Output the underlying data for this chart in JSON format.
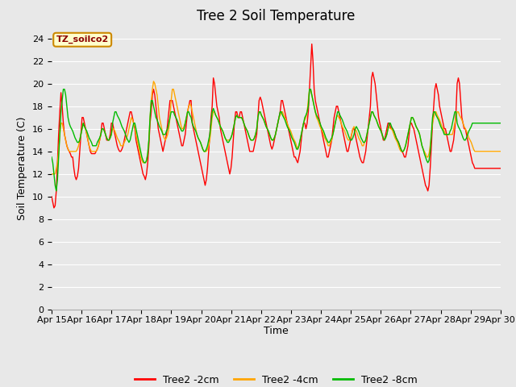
{
  "title": "Tree 2 Soil Temperature",
  "xlabel": "Time",
  "ylabel": "Soil Temperature (C)",
  "legend_label": "TZ_soilco2",
  "series_labels": [
    "Tree2 -2cm",
    "Tree2 -4cm",
    "Tree2 -8cm"
  ],
  "series_colors": [
    "#ff0000",
    "#ffa500",
    "#00bb00"
  ],
  "line_width": 1.0,
  "xlim": [
    0,
    15
  ],
  "ylim": [
    0,
    25
  ],
  "yticks": [
    0,
    2,
    4,
    6,
    8,
    10,
    12,
    14,
    16,
    18,
    20,
    22,
    24
  ],
  "xtick_labels": [
    "Apr 15",
    "Apr 16",
    "Apr 17",
    "Apr 18",
    "Apr 19",
    "Apr 20",
    "Apr 21",
    "Apr 22",
    "Apr 23",
    "Apr 24",
    "Apr 25",
    "Apr 26",
    "Apr 27",
    "Apr 28",
    "Apr 29",
    "Apr 30"
  ],
  "background_color": "#e8e8e8",
  "plot_bg_color": "#e8e8e8",
  "grid_color": "#ffffff",
  "title_fontsize": 12,
  "axis_label_fontsize": 9,
  "tick_fontsize": 8,
  "legend_box_color": "#ffffcc",
  "legend_box_edge_color": "#cc8800",
  "red_2cm": [
    10.0,
    9.5,
    9.0,
    9.2,
    10.5,
    13.0,
    15.5,
    17.5,
    19.2,
    18.0,
    16.5,
    15.5,
    15.0,
    14.5,
    14.2,
    14.0,
    13.8,
    13.5,
    13.5,
    12.5,
    11.8,
    11.5,
    11.8,
    12.5,
    14.0,
    15.5,
    17.0,
    17.0,
    16.5,
    16.0,
    15.5,
    15.0,
    14.5,
    14.0,
    13.8,
    13.8,
    13.8,
    13.8,
    14.0,
    14.2,
    14.5,
    15.0,
    15.5,
    16.5,
    16.5,
    16.0,
    15.5,
    15.0,
    15.0,
    15.0,
    15.5,
    16.5,
    16.5,
    16.0,
    15.5,
    15.0,
    14.5,
    14.2,
    14.0,
    14.0,
    14.2,
    14.5,
    15.0,
    15.5,
    16.0,
    16.5,
    17.0,
    17.5,
    17.5,
    17.0,
    16.5,
    16.0,
    15.0,
    14.5,
    14.0,
    13.5,
    13.0,
    12.5,
    12.0,
    11.8,
    11.5,
    12.0,
    13.0,
    14.5,
    16.5,
    17.5,
    19.0,
    19.5,
    19.0,
    18.0,
    17.0,
    16.0,
    15.5,
    15.0,
    14.5,
    14.0,
    14.5,
    15.0,
    15.5,
    16.5,
    17.5,
    18.5,
    18.5,
    18.5,
    18.0,
    17.5,
    17.0,
    16.5,
    16.0,
    15.5,
    15.0,
    14.5,
    14.5,
    15.0,
    15.5,
    16.5,
    17.5,
    18.0,
    18.5,
    18.5,
    16.5,
    16.0,
    15.5,
    15.0,
    14.5,
    14.0,
    13.5,
    13.0,
    12.5,
    12.0,
    11.5,
    11.0,
    11.5,
    12.5,
    14.0,
    15.5,
    17.0,
    18.0,
    20.5,
    20.0,
    19.0,
    18.0,
    17.5,
    17.0,
    16.0,
    15.5,
    15.0,
    14.5,
    14.0,
    13.5,
    13.0,
    12.5,
    12.0,
    12.5,
    13.5,
    15.0,
    16.5,
    17.5,
    17.5,
    17.0,
    17.0,
    17.5,
    17.5,
    17.0,
    16.5,
    16.0,
    15.5,
    15.0,
    14.5,
    14.0,
    14.0,
    14.0,
    14.0,
    14.5,
    15.0,
    15.5,
    17.0,
    18.5,
    18.8,
    18.5,
    18.0,
    17.5,
    17.0,
    16.5,
    16.0,
    15.5,
    15.0,
    14.5,
    14.2,
    14.5,
    15.0,
    15.5,
    16.0,
    16.5,
    17.0,
    17.5,
    18.5,
    18.5,
    18.0,
    17.5,
    17.0,
    16.5,
    16.0,
    15.5,
    15.0,
    14.5,
    14.0,
    13.5,
    13.5,
    13.2,
    13.0,
    13.5,
    14.0,
    15.0,
    16.0,
    16.5,
    16.5,
    16.0,
    16.5,
    17.5,
    19.5,
    21.5,
    23.5,
    22.0,
    19.5,
    18.5,
    18.0,
    17.5,
    17.0,
    16.5,
    16.0,
    15.5,
    15.0,
    14.5,
    14.0,
    13.5,
    13.5,
    14.0,
    14.5,
    15.0,
    16.0,
    17.0,
    17.5,
    18.0,
    18.0,
    17.5,
    17.0,
    16.5,
    16.0,
    15.5,
    15.0,
    14.5,
    14.0,
    14.0,
    14.5,
    15.0,
    15.5,
    16.0,
    16.0,
    15.5,
    15.0,
    14.5,
    14.0,
    13.5,
    13.2,
    13.0,
    13.0,
    13.5,
    14.0,
    15.0,
    16.0,
    17.0,
    18.0,
    20.5,
    21.0,
    20.5,
    20.0,
    19.0,
    18.0,
    17.0,
    16.5,
    16.0,
    15.5,
    15.0,
    15.0,
    15.5,
    16.0,
    16.5,
    16.5,
    16.2,
    16.0,
    16.0,
    15.8,
    15.5,
    15.2,
    15.0,
    14.8,
    14.5,
    14.2,
    14.0,
    13.8,
    13.5,
    13.5,
    14.0,
    14.5,
    15.5,
    16.5,
    16.5,
    16.2,
    16.0,
    15.5,
    15.0,
    14.5,
    14.0,
    13.5,
    13.0,
    12.5,
    12.0,
    11.5,
    11.0,
    10.8,
    10.5,
    11.0,
    12.5,
    14.5,
    16.5,
    18.0,
    19.5,
    20.0,
    19.5,
    19.0,
    18.0,
    17.5,
    17.0,
    16.5,
    16.0,
    16.0,
    15.5,
    15.0,
    14.5,
    14.0,
    14.0,
    14.5,
    15.0,
    16.0,
    17.5,
    20.0,
    20.5,
    20.0,
    18.5,
    17.0,
    16.5,
    16.0,
    16.0,
    15.5,
    15.0,
    14.5,
    14.0,
    13.5,
    13.0,
    12.8,
    12.5,
    12.5,
    12.5,
    12.5,
    12.5,
    12.5,
    12.5,
    12.5,
    12.5,
    12.5,
    12.5,
    12.5,
    12.5,
    12.5,
    12.5,
    12.5,
    12.5,
    12.5,
    12.5,
    12.5,
    12.5,
    12.5,
    12.5
  ],
  "orange_4cm": [
    12.0,
    12.0,
    12.0,
    12.0,
    12.5,
    13.0,
    14.0,
    15.5,
    16.5,
    16.5,
    16.0,
    15.5,
    15.0,
    14.5,
    14.2,
    14.0,
    14.0,
    14.0,
    14.0,
    14.0,
    14.0,
    14.0,
    14.2,
    14.5,
    15.0,
    15.5,
    16.0,
    16.5,
    16.2,
    16.0,
    15.5,
    15.0,
    14.5,
    14.2,
    14.0,
    14.0,
    14.0,
    14.0,
    14.0,
    14.2,
    14.5,
    15.0,
    15.5,
    16.0,
    16.0,
    15.8,
    15.5,
    15.2,
    15.0,
    15.0,
    15.2,
    15.5,
    16.0,
    16.0,
    15.8,
    15.5,
    15.2,
    15.0,
    14.8,
    14.5,
    14.5,
    14.5,
    14.8,
    15.0,
    15.2,
    15.5,
    16.0,
    16.5,
    17.0,
    16.8,
    16.5,
    16.2,
    15.5,
    15.0,
    14.5,
    14.0,
    13.5,
    13.2,
    13.0,
    13.0,
    13.0,
    13.2,
    13.8,
    15.0,
    17.0,
    18.5,
    19.5,
    20.2,
    20.0,
    19.5,
    19.0,
    18.0,
    17.0,
    16.5,
    16.0,
    15.5,
    15.2,
    15.0,
    15.2,
    15.5,
    16.0,
    17.0,
    18.5,
    19.5,
    19.5,
    19.0,
    18.5,
    18.0,
    17.5,
    17.0,
    16.5,
    16.0,
    16.0,
    16.2,
    16.5,
    17.0,
    17.5,
    18.0,
    18.2,
    18.0,
    17.5,
    17.0,
    16.5,
    16.0,
    15.5,
    15.2,
    15.0,
    14.8,
    14.5,
    14.2,
    14.0,
    14.0,
    14.0,
    14.2,
    14.5,
    15.0,
    16.0,
    17.0,
    17.5,
    17.5,
    17.2,
    17.0,
    16.8,
    16.5,
    16.2,
    16.0,
    15.8,
    15.5,
    15.2,
    15.0,
    15.0,
    15.0,
    15.0,
    15.2,
    15.5,
    16.0,
    16.5,
    17.0,
    17.2,
    17.0,
    17.0,
    17.0,
    17.0,
    16.8,
    16.5,
    16.2,
    16.0,
    15.8,
    15.5,
    15.2,
    15.0,
    15.0,
    15.0,
    15.2,
    15.5,
    16.0,
    17.0,
    17.5,
    17.5,
    17.2,
    17.0,
    16.8,
    16.5,
    16.2,
    16.0,
    15.8,
    15.5,
    15.2,
    15.0,
    15.0,
    15.2,
    15.5,
    16.0,
    16.5,
    17.0,
    17.2,
    17.5,
    17.5,
    17.2,
    17.0,
    16.8,
    16.5,
    16.2,
    16.0,
    15.8,
    15.5,
    15.2,
    15.0,
    14.8,
    14.5,
    14.2,
    14.5,
    15.0,
    15.5,
    16.0,
    16.5,
    16.8,
    17.0,
    17.5,
    18.5,
    19.5,
    19.5,
    19.0,
    18.5,
    18.0,
    17.5,
    17.0,
    16.8,
    16.5,
    16.2,
    16.0,
    15.8,
    15.5,
    15.2,
    15.0,
    14.8,
    14.5,
    14.5,
    14.8,
    15.0,
    15.5,
    16.0,
    16.5,
    17.0,
    17.2,
    17.0,
    16.8,
    16.5,
    16.2,
    16.0,
    15.8,
    15.5,
    15.2,
    15.0,
    15.0,
    15.2,
    15.5,
    16.0,
    16.2,
    16.0,
    15.8,
    15.5,
    15.2,
    15.0,
    14.8,
    14.5,
    14.5,
    14.8,
    15.0,
    15.5,
    16.0,
    16.5,
    17.0,
    17.5,
    17.5,
    17.2,
    17.0,
    16.8,
    16.5,
    16.2,
    16.0,
    15.8,
    15.5,
    15.2,
    15.0,
    15.2,
    15.5,
    16.0,
    16.2,
    16.0,
    16.0,
    15.8,
    15.5,
    15.2,
    15.0,
    14.8,
    14.5,
    14.2,
    14.0,
    14.0,
    14.0,
    14.2,
    14.5,
    15.0,
    15.5,
    16.0,
    16.5,
    17.0,
    17.0,
    16.8,
    16.5,
    16.2,
    16.0,
    15.8,
    15.5,
    15.0,
    14.5,
    14.2,
    14.0,
    13.8,
    13.5,
    13.5,
    13.8,
    14.5,
    15.5,
    16.5,
    17.0,
    17.5,
    17.5,
    17.2,
    17.0,
    16.8,
    16.5,
    16.2,
    16.0,
    15.8,
    15.5,
    15.5,
    15.5,
    15.5,
    15.5,
    15.5,
    15.5,
    16.0,
    16.5,
    17.0,
    17.5,
    17.5,
    17.2,
    17.0,
    16.8,
    16.5,
    16.2,
    16.0,
    15.8,
    15.5,
    15.2,
    15.0,
    14.8,
    14.5,
    14.2,
    14.0,
    14.0,
    14.0,
    14.0,
    14.0,
    14.0,
    14.0,
    14.0,
    14.0,
    14.0,
    14.0,
    14.0,
    14.0,
    14.0,
    14.0,
    14.0,
    14.0,
    14.0,
    14.0,
    14.0,
    14.0,
    14.0,
    14.0
  ],
  "green_8cm": [
    13.5,
    13.0,
    12.0,
    11.0,
    10.5,
    11.5,
    13.5,
    15.5,
    17.5,
    18.5,
    19.5,
    19.5,
    19.0,
    18.0,
    17.0,
    16.5,
    16.2,
    16.0,
    15.8,
    15.5,
    15.2,
    15.0,
    14.8,
    14.8,
    15.0,
    15.5,
    16.0,
    16.5,
    16.2,
    16.0,
    15.8,
    15.5,
    15.2,
    15.0,
    14.8,
    14.5,
    14.5,
    14.5,
    14.5,
    14.8,
    15.0,
    15.2,
    15.5,
    16.0,
    16.0,
    15.8,
    15.5,
    15.2,
    15.0,
    15.0,
    15.2,
    15.5,
    16.5,
    17.0,
    17.5,
    17.5,
    17.2,
    17.0,
    16.8,
    16.5,
    16.2,
    16.0,
    15.8,
    15.5,
    15.2,
    15.0,
    14.8,
    15.0,
    15.5,
    16.0,
    16.5,
    16.5,
    16.0,
    15.5,
    15.0,
    14.5,
    14.0,
    13.5,
    13.2,
    13.0,
    13.0,
    13.2,
    13.8,
    15.0,
    17.0,
    18.5,
    18.5,
    18.0,
    17.5,
    17.0,
    16.8,
    16.5,
    16.2,
    16.0,
    15.8,
    15.5,
    15.5,
    15.5,
    15.8,
    16.0,
    16.5,
    17.0,
    17.5,
    17.5,
    17.5,
    17.2,
    17.0,
    16.8,
    16.5,
    16.2,
    16.0,
    15.8,
    15.8,
    16.0,
    16.5,
    17.0,
    17.5,
    17.5,
    17.2,
    17.0,
    16.5,
    16.2,
    16.0,
    15.8,
    15.5,
    15.2,
    15.0,
    14.8,
    14.5,
    14.2,
    14.0,
    14.0,
    14.2,
    14.5,
    15.0,
    15.5,
    16.5,
    17.5,
    17.8,
    17.5,
    17.2,
    17.0,
    16.8,
    16.5,
    16.2,
    16.0,
    15.8,
    15.5,
    15.2,
    15.0,
    14.8,
    14.8,
    15.0,
    15.2,
    15.5,
    16.0,
    16.5,
    17.0,
    17.2,
    17.0,
    17.0,
    17.0,
    17.0,
    16.8,
    16.5,
    16.2,
    16.0,
    15.8,
    15.5,
    15.2,
    15.0,
    15.0,
    15.0,
    15.2,
    15.5,
    16.0,
    17.0,
    17.5,
    17.5,
    17.2,
    17.0,
    16.8,
    16.5,
    16.2,
    16.0,
    15.8,
    15.5,
    15.2,
    15.0,
    15.0,
    15.2,
    15.5,
    16.0,
    16.5,
    17.0,
    17.5,
    17.5,
    17.2,
    17.0,
    16.8,
    16.5,
    16.2,
    16.0,
    15.8,
    15.5,
    15.2,
    15.0,
    14.8,
    14.5,
    14.2,
    14.2,
    14.5,
    15.0,
    15.5,
    16.0,
    16.5,
    17.0,
    17.2,
    17.5,
    18.0,
    19.5,
    19.5,
    19.0,
    18.5,
    18.0,
    17.5,
    17.2,
    17.0,
    16.8,
    16.5,
    16.2,
    16.0,
    15.8,
    15.5,
    15.2,
    15.0,
    14.8,
    14.8,
    15.0,
    15.2,
    15.5,
    16.0,
    16.5,
    17.0,
    17.5,
    17.5,
    17.2,
    17.0,
    16.8,
    16.5,
    16.2,
    16.0,
    15.8,
    15.5,
    15.2,
    15.0,
    15.0,
    15.2,
    15.5,
    16.0,
    16.2,
    16.0,
    15.8,
    15.5,
    15.2,
    15.0,
    14.8,
    14.8,
    15.0,
    15.5,
    16.0,
    16.5,
    17.0,
    17.5,
    17.5,
    17.2,
    17.0,
    16.8,
    16.5,
    16.2,
    16.0,
    15.8,
    15.5,
    15.2,
    15.0,
    15.2,
    15.5,
    16.0,
    16.5,
    16.5,
    16.2,
    16.0,
    15.8,
    15.5,
    15.2,
    15.0,
    14.8,
    14.5,
    14.2,
    14.0,
    14.0,
    14.2,
    14.5,
    15.0,
    15.5,
    16.0,
    16.5,
    17.0,
    17.0,
    16.8,
    16.5,
    16.2,
    16.0,
    15.8,
    15.5,
    15.0,
    14.5,
    14.2,
    13.8,
    13.5,
    13.2,
    13.0,
    13.2,
    14.0,
    15.5,
    17.0,
    17.5,
    17.5,
    17.2,
    17.0,
    16.8,
    16.5,
    16.2,
    16.0,
    15.8,
    15.5,
    15.5,
    15.5,
    15.5,
    15.5,
    15.8,
    16.0,
    16.5,
    17.0,
    17.5,
    17.5,
    16.5,
    16.2,
    16.0,
    15.8,
    15.5,
    15.2,
    15.0,
    15.0,
    15.2,
    15.5,
    15.8,
    16.0,
    16.2,
    16.5,
    16.5,
    16.5,
    16.5,
    16.5,
    16.5,
    16.5,
    16.5,
    16.5,
    16.5,
    16.5,
    16.5,
    16.5,
    16.5,
    16.5,
    16.5,
    16.5,
    16.5,
    16.5,
    16.5,
    16.5,
    16.5,
    16.5,
    16.5,
    16.5
  ]
}
